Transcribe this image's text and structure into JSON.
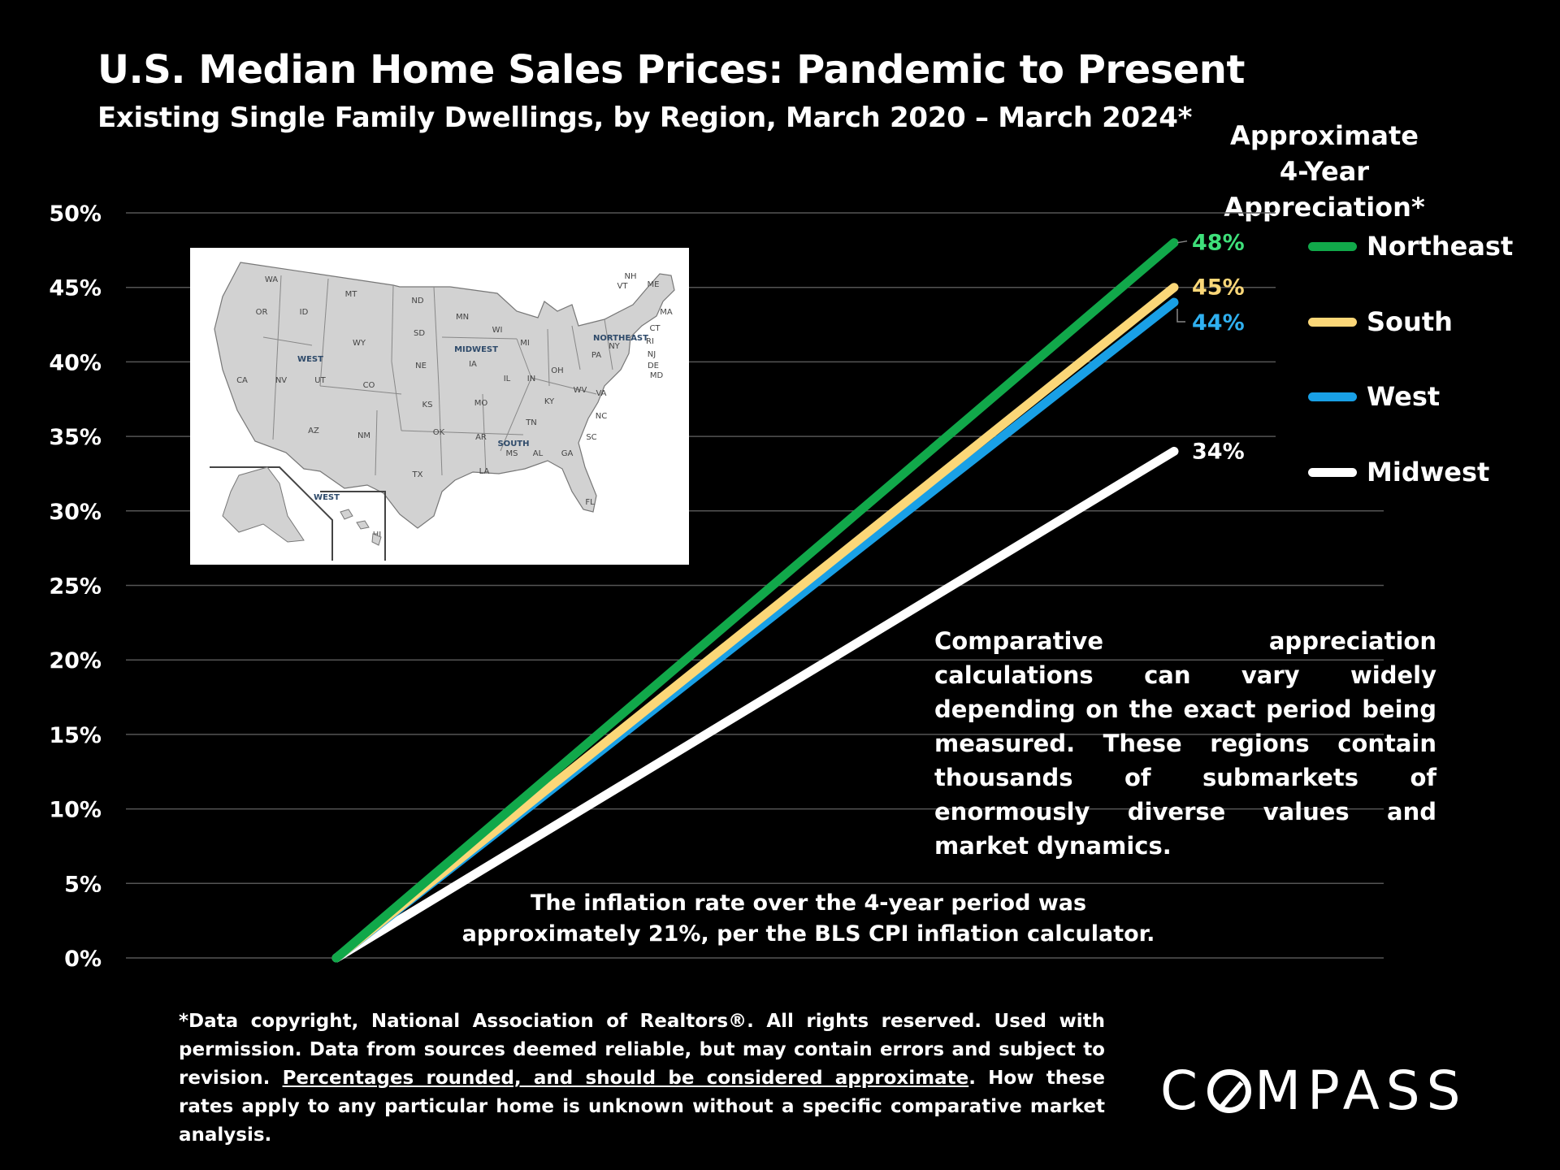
{
  "title": "U.S. Median Home Sales Prices:  Pandemic to Present",
  "subtitle": "Existing Single Family Dwellings, by Region, March 2020 – March 2024*",
  "appreciation_header_line1": "Approximate",
  "appreciation_header_line2": "4-Year Appreciation*",
  "note": "Comparative appreciation calculations can vary widely depending on the exact period being measured. These regions contain thousands of submarkets of enormously diverse values and market dynamics.",
  "inflation_line1": "The inflation rate over the 4-year period was",
  "inflation_line2": "approximately 21%, per the BLS CPI inflation calculator.",
  "footnote": {
    "part1": "*Data copyright, National Association of Realtors®. All rights reserved. Used with permission. Data from sources deemed reliable, but may contain errors and subject to revision. ",
    "underlined": "Percentages rounded, and should be considered approximate",
    "part2": ". How these rates apply to any particular home is unknown without a specific comparative market analysis."
  },
  "logo": {
    "before": "C",
    "after": "MPASS"
  },
  "map": {
    "states": [
      "WA",
      "MT",
      "ND",
      "MN",
      "OR",
      "ID",
      "SD",
      "WI",
      "WY",
      "MI",
      "NE",
      "IA",
      "IL",
      "IN",
      "OH",
      "PA",
      "NY",
      "NV",
      "UT",
      "CO",
      "KS",
      "MO",
      "KY",
      "WV",
      "VA",
      "CA",
      "AZ",
      "NM",
      "OK",
      "AR",
      "TN",
      "NC",
      "SC",
      "MS",
      "AL",
      "GA",
      "TX",
      "LA",
      "FL",
      "AK",
      "HI",
      "NH",
      "VT",
      "ME",
      "MA",
      "CT",
      "RI",
      "NJ",
      "DE",
      "MD"
    ],
    "region_labels": [
      "WEST",
      "MIDWEST",
      "NORTHEAST",
      "SOUTH",
      "WEST"
    ]
  },
  "chart_data": {
    "type": "line",
    "title": "U.S. Median Home Sales Prices:  Pandemic to Present",
    "x": [
      "March 2020",
      "March 2024"
    ],
    "ylim": [
      0,
      50
    ],
    "y_ticks": [
      "0%",
      "5%",
      "10%",
      "15%",
      "20%",
      "25%",
      "30%",
      "35%",
      "40%",
      "45%",
      "50%"
    ],
    "grid": true,
    "legend_position": "right",
    "series": [
      {
        "name": "Northeast",
        "values": [
          0,
          48
        ],
        "end_label": "48%",
        "color": "#11a84a",
        "label_color": "#3ee07a"
      },
      {
        "name": "South",
        "values": [
          0,
          45
        ],
        "end_label": "45%",
        "color": "#fbd778",
        "label_color": "#fbd778"
      },
      {
        "name": "West",
        "values": [
          0,
          44
        ],
        "end_label": "44%",
        "color": "#19a0e6",
        "label_color": "#2fb0f0"
      },
      {
        "name": "Midwest",
        "values": [
          0,
          34
        ],
        "end_label": "34%",
        "color": "#ffffff",
        "label_color": "#ffffff"
      }
    ]
  }
}
